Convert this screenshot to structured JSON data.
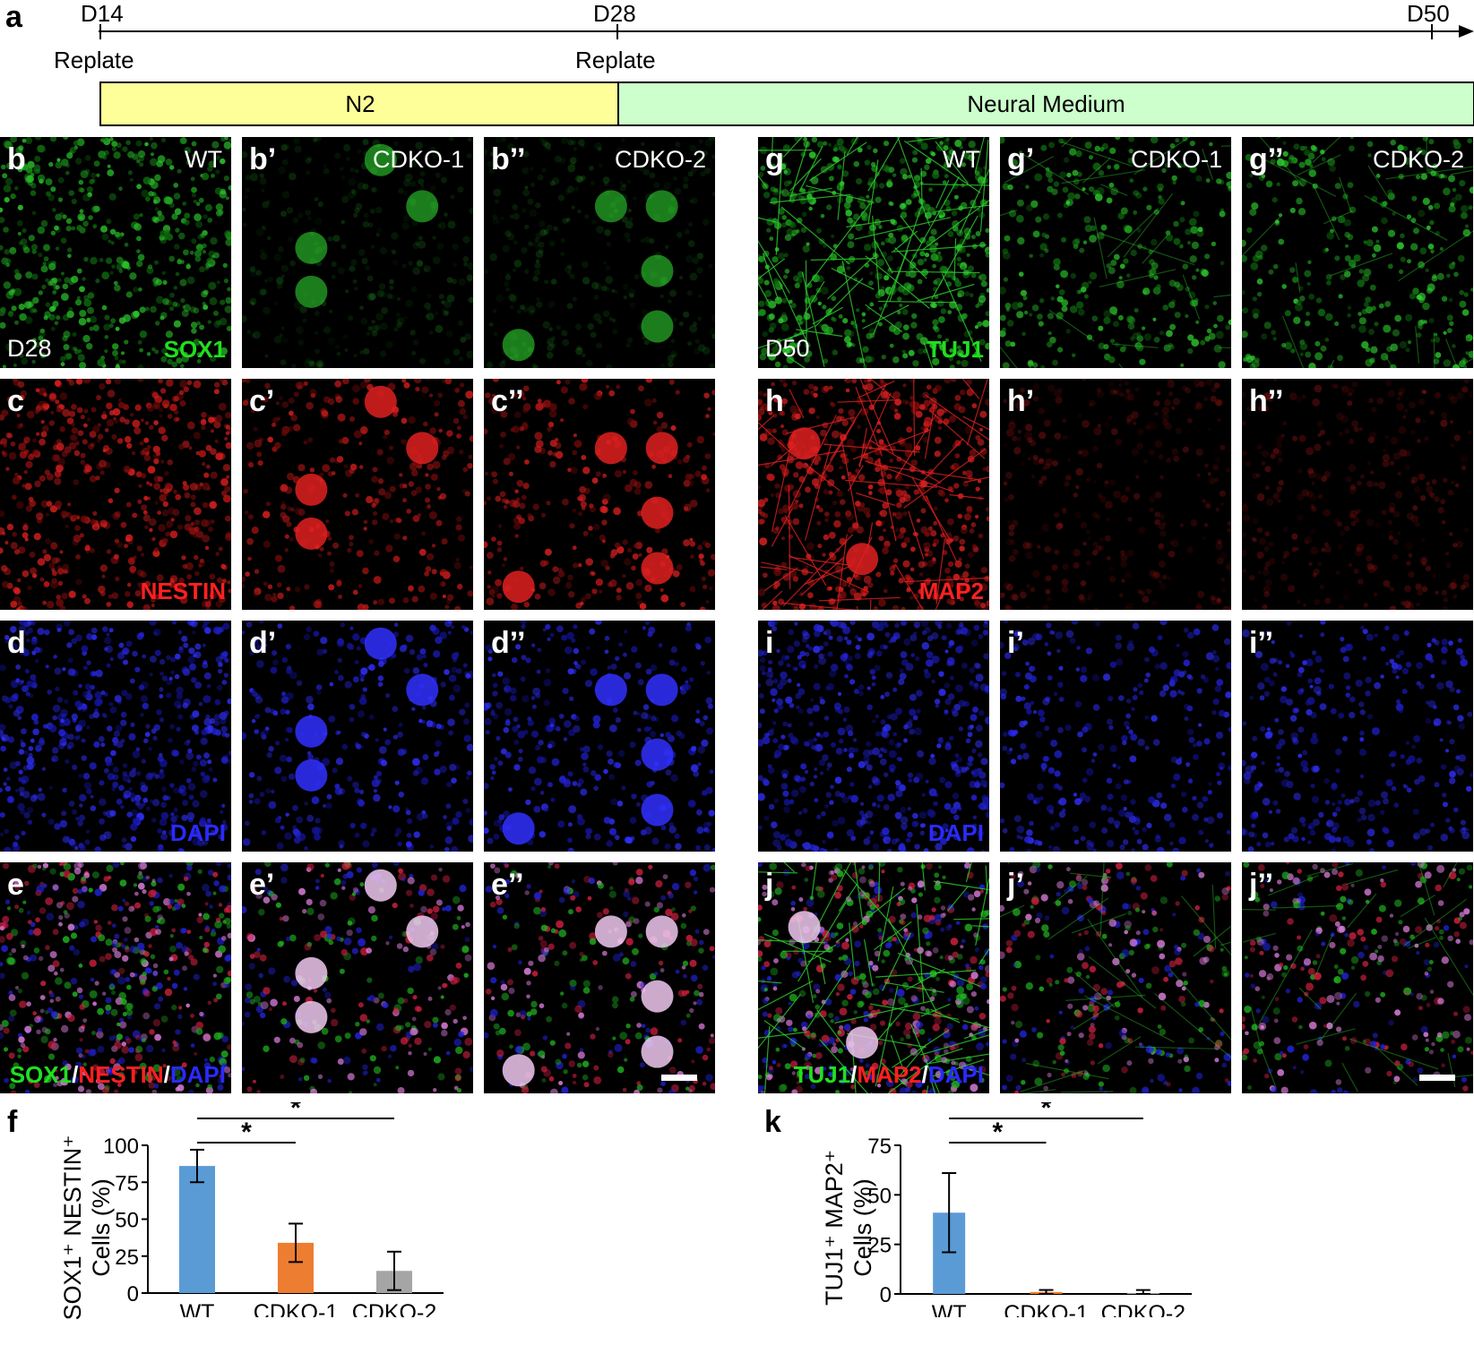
{
  "timeline": {
    "panel_label": "a",
    "days": [
      "D14",
      "D28",
      "D50"
    ],
    "events": [
      "Replate",
      "Replate"
    ],
    "media": [
      "N2",
      "Neural Medium"
    ],
    "colors": {
      "n2": "#ffff99",
      "neural": "#ccffcc"
    }
  },
  "left_grid": {
    "columns": [
      "WT",
      "CDKO-1",
      "CDKO-2"
    ],
    "rows": [
      {
        "letters": [
          "b",
          "b’",
          "b’’"
        ],
        "channel": "green",
        "stage": "D28",
        "marker": [
          {
            "t": "SOX1",
            "c": "g"
          }
        ]
      },
      {
        "letters": [
          "c",
          "c’",
          "c’’"
        ],
        "channel": "red",
        "marker": [
          {
            "t": "NESTIN",
            "c": "r"
          }
        ]
      },
      {
        "letters": [
          "d",
          "d’",
          "d’’"
        ],
        "channel": "blue",
        "marker": [
          {
            "t": "DAPI",
            "c": "b"
          }
        ]
      },
      {
        "letters": [
          "e",
          "e’",
          "e’’"
        ],
        "channel": "merge",
        "marker": [
          {
            "t": "SOX1",
            "c": "g"
          },
          {
            "t": "/",
            "c": "w"
          },
          {
            "t": "NESTIN",
            "c": "r"
          },
          {
            "t": "/",
            "c": "w"
          },
          {
            "t": "DAPI",
            "c": "b"
          }
        ]
      }
    ]
  },
  "right_grid": {
    "columns": [
      "WT",
      "CDKO-1",
      "CDKO-2"
    ],
    "rows": [
      {
        "letters": [
          "g",
          "g’",
          "g’’"
        ],
        "channel": "green",
        "stage": "D50",
        "marker": [
          {
            "t": "TUJ1",
            "c": "g"
          }
        ]
      },
      {
        "letters": [
          "h",
          "h’",
          "h’’"
        ],
        "channel": "red",
        "marker": [
          {
            "t": "MAP2",
            "c": "r"
          }
        ]
      },
      {
        "letters": [
          "i",
          "i’",
          "i’’"
        ],
        "channel": "blue",
        "marker": [
          {
            "t": "DAPI",
            "c": "b"
          }
        ]
      },
      {
        "letters": [
          "j",
          "j’",
          "j’’"
        ],
        "channel": "merge",
        "marker": [
          {
            "t": "TUJ1",
            "c": "g"
          },
          {
            "t": "/",
            "c": "w"
          },
          {
            "t": "MAP2",
            "c": "r"
          },
          {
            "t": "/",
            "c": "w"
          },
          {
            "t": "DAPI",
            "c": "b"
          }
        ]
      }
    ]
  },
  "chart_f": {
    "panel_label": "f",
    "ylabel_line1": "SOX1⁺ NESTIN⁺",
    "ylabel_line2": "Cells (%)",
    "significance": "*"
  },
  "chart_k": {
    "panel_label": "k",
    "ylabel_line1": "TUJ1⁺ MAP2⁺",
    "ylabel_line2": "Cells (%)",
    "significance": "*"
  },
  "chart_data": [
    {
      "type": "bar",
      "categories": [
        "WT",
        "CDKO-1",
        "CDKO-2"
      ],
      "values": [
        86,
        34,
        15
      ],
      "errors": [
        11,
        13,
        13
      ],
      "colors": [
        "#5b9bd5",
        "#ed7d31",
        "#a5a5a5"
      ],
      "ylabel": "SOX1+NESTIN+ Cells (%)",
      "ylim": [
        0,
        100
      ],
      "yticks": [
        0,
        25,
        50,
        75,
        100
      ],
      "significance": [
        {
          "from": "WT",
          "to": "CDKO-1",
          "label": "*"
        },
        {
          "from": "WT",
          "to": "CDKO-2",
          "label": "*"
        }
      ]
    },
    {
      "type": "bar",
      "categories": [
        "WT",
        "CDKO-1",
        "CDKO-2"
      ],
      "values": [
        41,
        1,
        0.5
      ],
      "errors": [
        20,
        1,
        1.5
      ],
      "colors": [
        "#5b9bd5",
        "#ed7d31",
        "#a5a5a5"
      ],
      "ylabel": "TUJ1+MAP2+ Cells (%)",
      "ylim": [
        0,
        75
      ],
      "yticks": [
        0,
        25,
        50,
        75
      ],
      "significance": [
        {
          "from": "WT",
          "to": "CDKO-1",
          "label": "*"
        },
        {
          "from": "WT",
          "to": "CDKO-2",
          "label": "*"
        }
      ]
    }
  ]
}
